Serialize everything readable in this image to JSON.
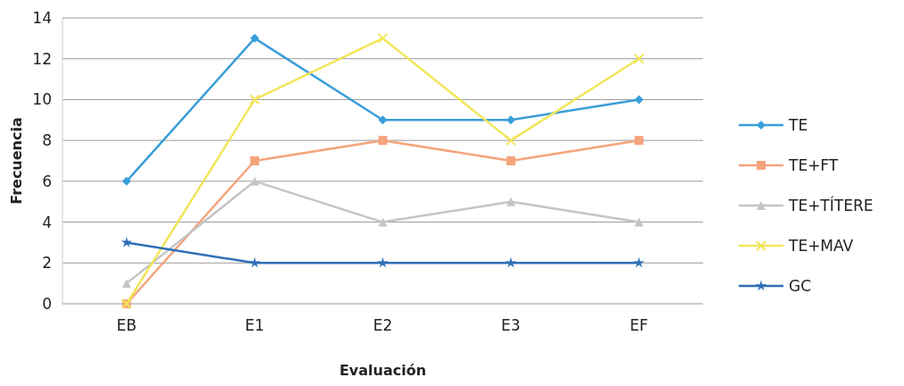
{
  "chart_data": {
    "type": "line",
    "xlabel": "Evaluación",
    "ylabel": "Frecuencia",
    "categories": [
      "EB",
      "E1",
      "E2",
      "E3",
      "EF"
    ],
    "ylim": [
      0,
      14
    ],
    "yticks": [
      0,
      2,
      4,
      6,
      8,
      10,
      12,
      14
    ],
    "grid": "y",
    "legend": "right",
    "line_style": "solid",
    "series": [
      {
        "name": "TE",
        "color": "#3a9ed8",
        "marker": "diamond",
        "values": [
          6,
          13,
          9,
          9,
          10
        ]
      },
      {
        "name": "TE+FT",
        "color": "#f4a47c",
        "marker": "square",
        "values": [
          0,
          7,
          8,
          7,
          8
        ]
      },
      {
        "name": "TE+TÍTERE",
        "color": "#c4c4c4",
        "marker": "triangle",
        "values": [
          1,
          6,
          4,
          5,
          4
        ]
      },
      {
        "name": "TE+MAV",
        "color": "#f2e55a",
        "marker": "cross",
        "values": [
          0,
          10,
          13,
          8,
          12
        ]
      },
      {
        "name": "GC",
        "color": "#2f6fb8",
        "marker": "star",
        "values": [
          3,
          2,
          2,
          2,
          2
        ]
      }
    ]
  }
}
